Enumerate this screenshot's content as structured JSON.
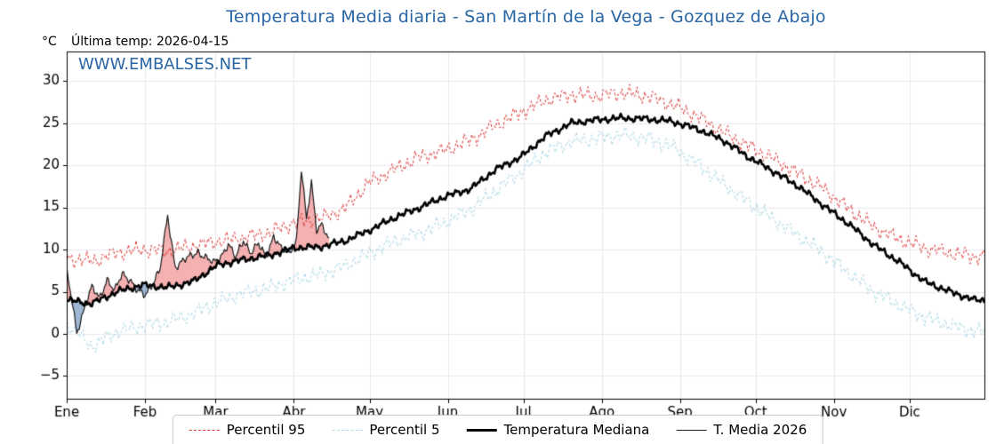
{
  "title": "Temperatura Media diaria - San Martín de la Vega - Gozquez de Abajo",
  "unit": "°C",
  "last_temp": "Última temp: 2026-04-15",
  "watermark": "WWW.EMBALSES.NET",
  "colors": {
    "title": "#2a66a5",
    "watermark": "#2a66a5",
    "axis": "#000000",
    "grid": "#e7e7ee",
    "p95": "#dd3333",
    "p5": "#a9d6e5",
    "median": "#000000",
    "t2026": "#1a1a1a",
    "fill_above": "rgba(235,100,100,0.5)",
    "fill_below": "rgba(95,135,185,0.6)"
  },
  "legend": {
    "items": [
      "Percentil 95",
      "Percentil 5",
      "Temperatura Mediana",
      "T. Media 2026"
    ]
  },
  "chart_data": {
    "type": "line",
    "title": "Temperatura Media diaria - San Martín de la Vega - Gozquez de Abajo",
    "xlabel": "",
    "ylabel": "°C",
    "xlim": [
      1,
      365
    ],
    "ylim": [
      -7.8,
      33.5
    ],
    "yticks": [
      -5,
      0,
      5,
      10,
      15,
      20,
      25,
      30
    ],
    "grid": true,
    "legend_position": "bottom",
    "month_labels": [
      "Ene",
      "Feb",
      "Mar",
      "Abr",
      "May",
      "Jun",
      "Jul",
      "Ago",
      "Sep",
      "Oct",
      "Nov",
      "Dic"
    ],
    "month_start_days": [
      1,
      32,
      60,
      91,
      121,
      152,
      182,
      213,
      244,
      274,
      305,
      335
    ],
    "x_days": [
      1,
      11,
      21,
      31,
      41,
      51,
      61,
      71,
      81,
      91,
      101,
      111,
      121,
      131,
      141,
      151,
      161,
      171,
      181,
      191,
      201,
      211,
      221,
      231,
      241,
      251,
      261,
      271,
      281,
      291,
      301,
      311,
      321,
      331,
      341,
      351,
      361
    ],
    "series": [
      {
        "name": "Percentil 95",
        "type": "dashed",
        "width": 1.0,
        "jitter": 1.0,
        "seed": 1,
        "values": [
          9.0,
          8.6,
          9.6,
          10.0,
          9.8,
          10.4,
          11.0,
          11.4,
          12.0,
          13.2,
          13.6,
          14.8,
          18.0,
          19.5,
          21.0,
          21.8,
          23.0,
          24.8,
          26.3,
          27.8,
          28.4,
          28.2,
          28.6,
          28.2,
          27.2,
          25.8,
          24.0,
          22.3,
          20.8,
          19.0,
          17.2,
          14.8,
          12.6,
          11.2,
          10.2,
          9.6,
          9.2
        ]
      },
      {
        "name": "Percentil 5",
        "type": "dashed",
        "width": 1.0,
        "jitter": 1.0,
        "seed": 2,
        "values": [
          1.2,
          -1.5,
          0.3,
          1.0,
          1.4,
          2.4,
          3.8,
          4.8,
          5.4,
          6.4,
          7.0,
          8.0,
          9.6,
          11.0,
          12.0,
          13.2,
          14.8,
          17.0,
          19.2,
          21.6,
          22.8,
          23.2,
          23.6,
          23.2,
          22.2,
          20.2,
          17.8,
          15.6,
          13.6,
          11.6,
          9.6,
          7.2,
          5.0,
          3.4,
          2.0,
          1.0,
          0.3
        ]
      },
      {
        "name": "Temperatura Mediana",
        "type": "solid",
        "width": 2.6,
        "jitter": 0.45,
        "seed": 3,
        "values": [
          4.0,
          3.6,
          5.0,
          5.8,
          5.5,
          6.2,
          8.2,
          8.8,
          9.3,
          10.2,
          10.3,
          11.0,
          12.3,
          13.8,
          15.0,
          16.3,
          17.2,
          19.5,
          21.0,
          23.5,
          25.0,
          25.4,
          25.6,
          25.5,
          25.2,
          24.3,
          23.0,
          21.0,
          19.3,
          17.5,
          15.2,
          13.0,
          10.5,
          8.5,
          6.2,
          5.0,
          4.0
        ]
      },
      {
        "name": "T. Media 2026",
        "type": "solid",
        "width": 1.2,
        "jitter": 0.55,
        "seed": 4,
        "x": [
          1,
          3,
          5,
          8,
          11,
          14,
          17,
          20,
          23,
          26,
          29,
          32,
          35,
          38,
          41,
          44,
          47,
          50,
          53,
          56,
          59,
          62,
          65,
          68,
          71,
          74,
          77,
          80,
          83,
          86,
          89,
          92,
          94,
          96,
          98,
          100,
          102,
          105
        ],
        "values": [
          7.5,
          4.0,
          0.2,
          3.0,
          5.5,
          4.3,
          6.5,
          5.0,
          7.2,
          6.5,
          5.0,
          4.6,
          6.0,
          7.6,
          14.0,
          8.0,
          8.6,
          9.2,
          9.8,
          9.0,
          8.4,
          9.2,
          10.6,
          9.0,
          11.2,
          9.6,
          10.6,
          9.2,
          11.6,
          10.0,
          9.6,
          11.0,
          19.5,
          13.5,
          18.0,
          12.5,
          13.0,
          11.0
        ],
        "x_end": 105
      }
    ]
  }
}
